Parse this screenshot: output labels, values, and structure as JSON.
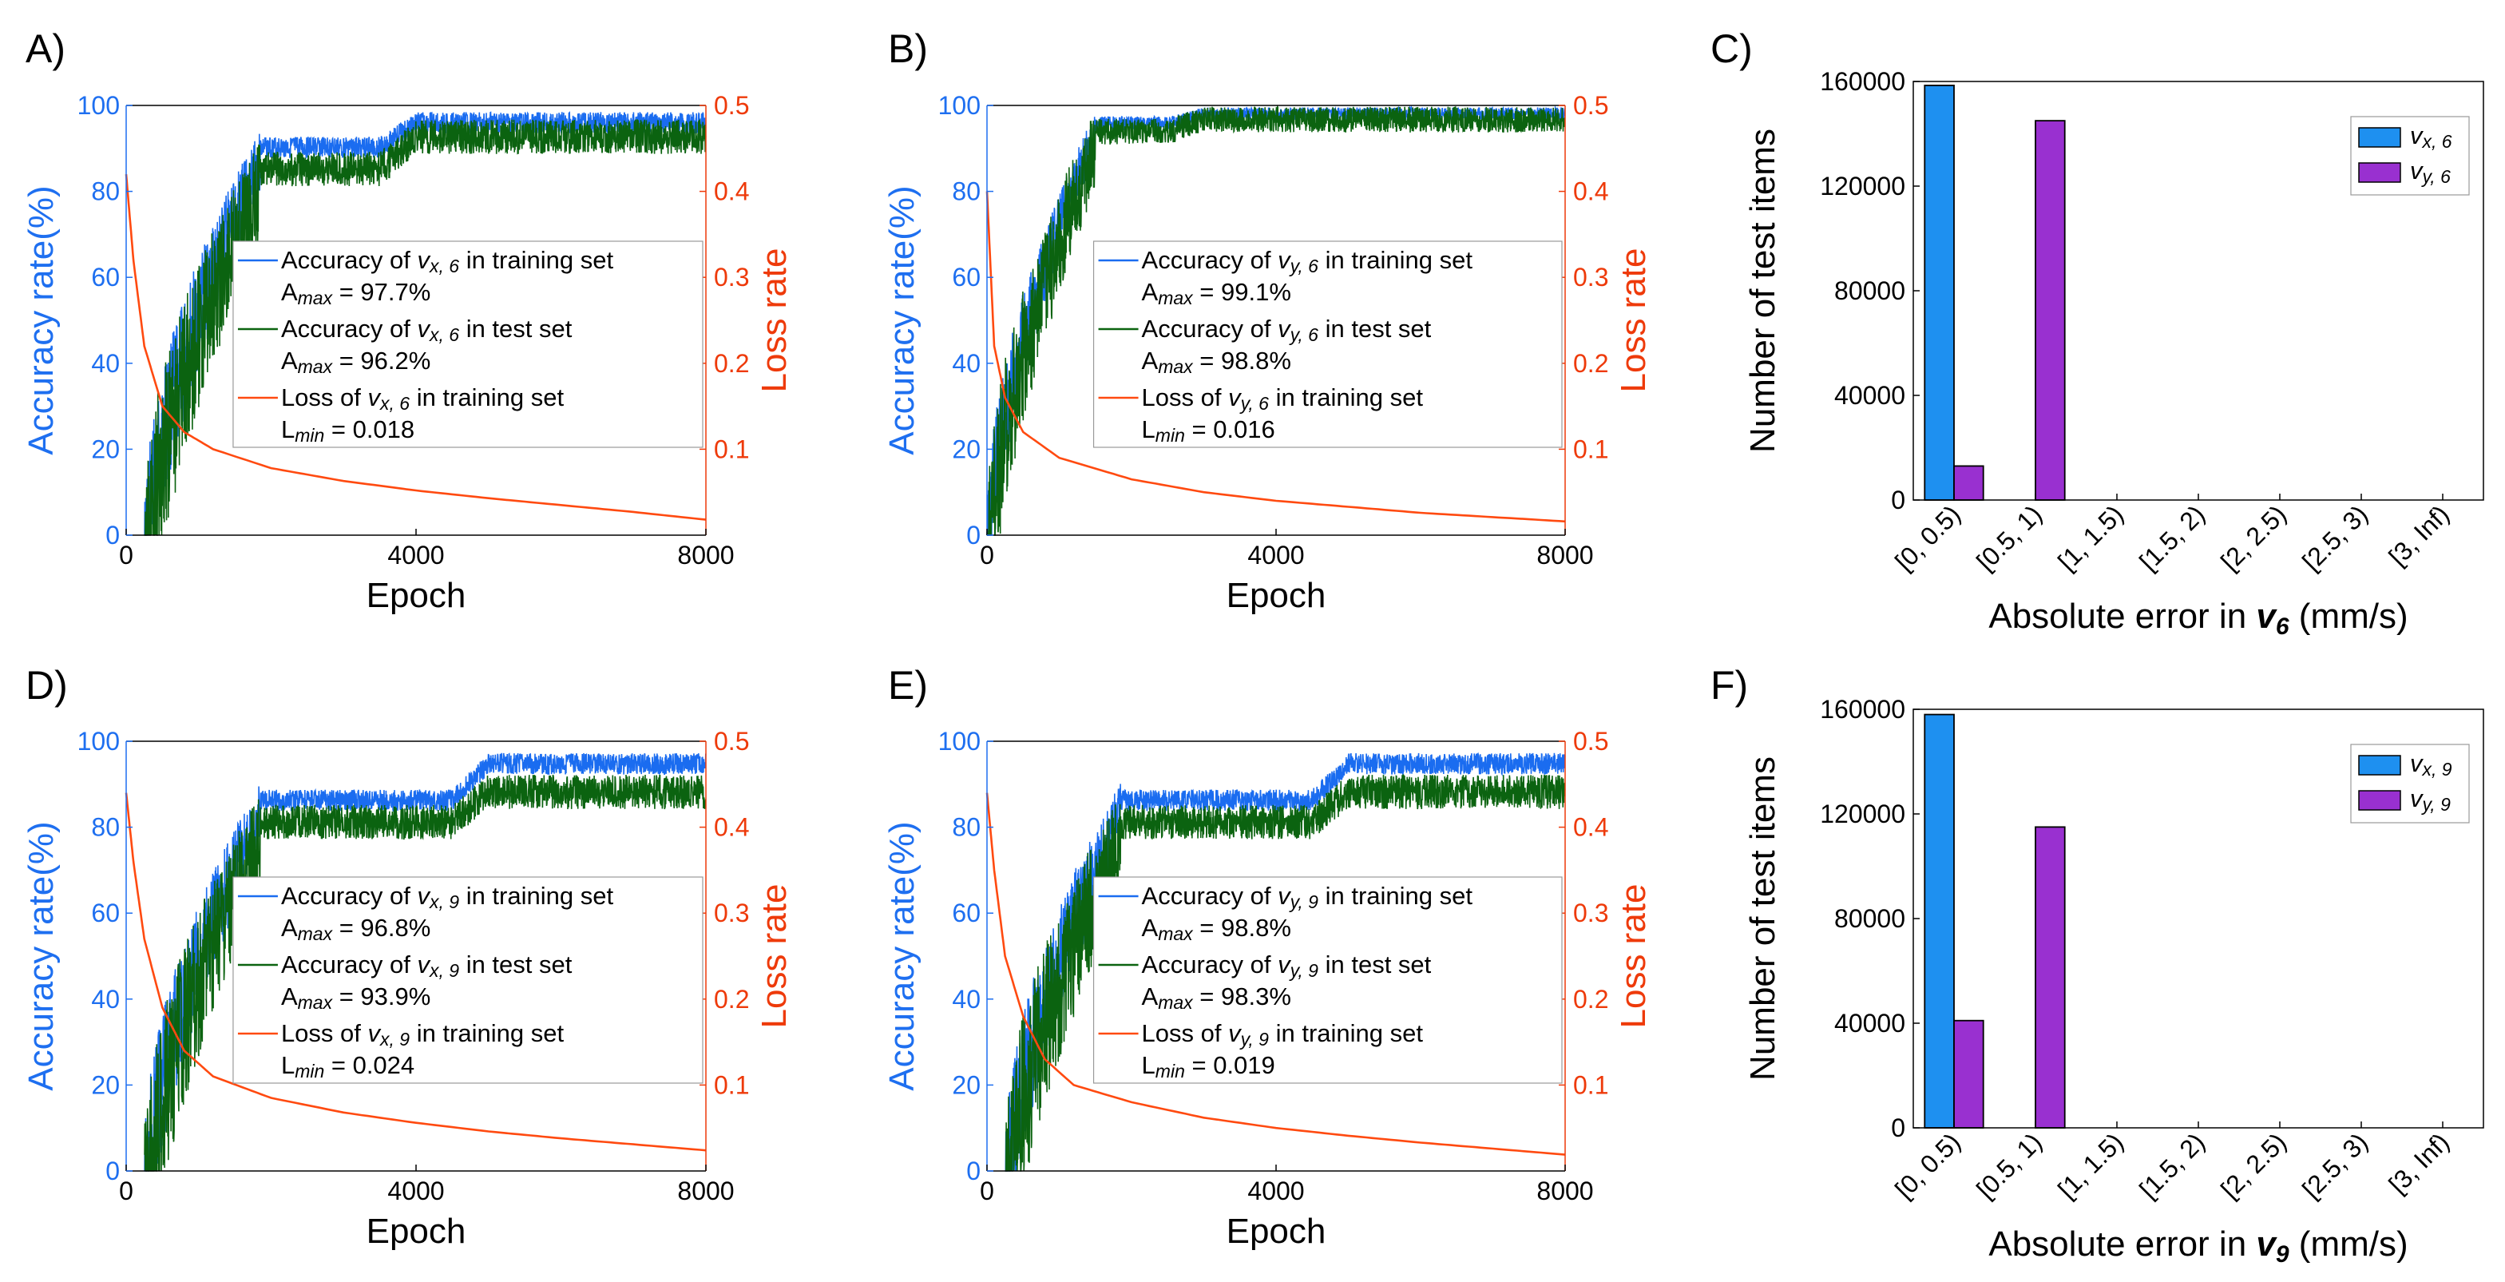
{
  "colors": {
    "train_acc": "#1a6cf0",
    "test_acc": "#0b6310",
    "loss": "#ff4a10",
    "bar_x": "#1e90f0",
    "bar_y": "#9930d0",
    "acc_axis": "#1e6ff0",
    "loss_axis": "#ee3a0a"
  },
  "chart_data": [
    {
      "type": "line",
      "panel": "A)",
      "xlabel": "Epoch",
      "ylabel": "Accuracy rate(%)",
      "y2label": "Loss rate",
      "xlim": [
        0,
        8000
      ],
      "ylim": [
        0,
        100
      ],
      "y2lim": [
        0,
        0.5
      ],
      "xticks": [
        "0",
        "4000",
        "8000"
      ],
      "yticks": [
        "0",
        "20",
        "40",
        "60",
        "80",
        "100"
      ],
      "y2ticks": [
        "0.1",
        "0.2",
        "0.3",
        "0.4",
        "0.5"
      ],
      "series": [
        {
          "name": "Accuracy of v_x,6 in training set",
          "role": "train",
          "start": 250,
          "rise": 1600,
          "mid": 92,
          "t2": 3500,
          "final": 97.7,
          "noise": 2.5
        },
        {
          "name": "Accuracy of v_x,6 in test set",
          "role": "test",
          "start": 250,
          "rise": 1600,
          "mid": 88,
          "t2": 3500,
          "final": 95.5,
          "noise": 4
        },
        {
          "name": "Loss of v_x,6 in training set",
          "role": "loss",
          "values": [
            [
              0,
              0.42
            ],
            [
              100,
              0.32
            ],
            [
              250,
              0.22
            ],
            [
              500,
              0.15
            ],
            [
              800,
              0.12
            ],
            [
              1200,
              0.1
            ],
            [
              2000,
              0.078
            ],
            [
              3000,
              0.063
            ],
            [
              4000,
              0.052
            ],
            [
              5000,
              0.043
            ],
            [
              6000,
              0.035
            ],
            [
              7000,
              0.027
            ],
            [
              8000,
              0.018
            ]
          ]
        }
      ],
      "legend": {
        "position": "center-right",
        "entries": [
          {
            "pre": "Accuracy of ",
            "sym": "v",
            "sub": "x, 6",
            "post": " in training set",
            "stat_pre": "A",
            "stat_sub": "max",
            "stat_val": " = 97.7%"
          },
          {
            "pre": "Accuracy of ",
            "sym": "v",
            "sub": "x, 6",
            "post": " in test set",
            "stat_pre": "A",
            "stat_sub": "max",
            "stat_val": " = 96.2%"
          },
          {
            "pre": "Loss of ",
            "sym": "v",
            "sub": "x, 6",
            "post": " in training set",
            "stat_pre": "L",
            "stat_sub": "min",
            "stat_val": " = 0.018"
          }
        ]
      }
    },
    {
      "type": "line",
      "panel": "B)",
      "xlabel": "Epoch",
      "ylabel": "Accuracy rate(%)",
      "y2label": "Loss rate",
      "xlim": [
        0,
        8000
      ],
      "ylim": [
        0,
        100
      ],
      "y2lim": [
        0,
        0.5
      ],
      "xticks": [
        "0",
        "4000",
        "8000"
      ],
      "yticks": [
        "0",
        "20",
        "40",
        "60",
        "80",
        "100"
      ],
      "y2ticks": [
        "0.1",
        "0.2",
        "0.3",
        "0.4",
        "0.5"
      ],
      "series": [
        {
          "name": "Accuracy of v_y,6 in training set",
          "role": "train",
          "start": 0,
          "rise": 1500,
          "mid": 97,
          "t2": 2500,
          "final": 99.1,
          "noise": 1.5
        },
        {
          "name": "Accuracy of v_y,6 in test set",
          "role": "test",
          "start": 0,
          "rise": 1500,
          "mid": 96,
          "t2": 2500,
          "final": 98.8,
          "noise": 3
        },
        {
          "name": "Loss of v_y,6 in training set",
          "role": "loss",
          "values": [
            [
              0,
              0.4
            ],
            [
              100,
              0.22
            ],
            [
              250,
              0.16
            ],
            [
              500,
              0.12
            ],
            [
              1000,
              0.09
            ],
            [
              2000,
              0.065
            ],
            [
              3000,
              0.05
            ],
            [
              4000,
              0.04
            ],
            [
              5000,
              0.033
            ],
            [
              6000,
              0.026
            ],
            [
              7000,
              0.021
            ],
            [
              8000,
              0.016
            ]
          ]
        }
      ],
      "legend": {
        "position": "center-right",
        "entries": [
          {
            "pre": "Accuracy of ",
            "sym": "v",
            "sub": "y, 6",
            "post": " in training set",
            "stat_pre": "A",
            "stat_sub": "max",
            "stat_val": " = 99.1%"
          },
          {
            "pre": "Accuracy of ",
            "sym": "v",
            "sub": "y, 6",
            "post": " in test set",
            "stat_pre": "A",
            "stat_sub": "max",
            "stat_val": " = 98.8%"
          },
          {
            "pre": "Loss of ",
            "sym": "v",
            "sub": "y, 6",
            "post": " in training set",
            "stat_pre": "L",
            "stat_sub": "min",
            "stat_val": " = 0.016"
          }
        ]
      }
    },
    {
      "type": "bar",
      "panel": "C)",
      "xlabel_pre": "Absolute error in ",
      "xlabel_sym": "v",
      "xlabel_sub": "6",
      "xlabel_post": " (mm/s)",
      "ylabel": "Number of test items",
      "ylim": [
        0,
        160000
      ],
      "yticks": [
        "0",
        "40000",
        "80000",
        "120000",
        "160000"
      ],
      "categories": [
        "[0, 0.5)",
        "[0.5, 1)",
        "[1, 1.5)",
        "[1.5, 2)",
        "[2, 2.5)",
        "[2.5, 3)",
        "[3, Inf)"
      ],
      "series": [
        {
          "name": "v_x,6",
          "sym": "v",
          "sub": "x, 6",
          "values": [
            158500,
            0,
            0,
            0,
            0,
            0,
            0
          ]
        },
        {
          "name": "v_y,6",
          "sym": "v",
          "sub": "y, 6",
          "values": [
            13000,
            145000,
            0,
            0,
            0,
            0,
            0
          ]
        }
      ],
      "legend": "top-right"
    },
    {
      "type": "line",
      "panel": "D)",
      "xlabel": "Epoch",
      "ylabel": "Accuracy rate(%)",
      "y2label": "Loss rate",
      "xlim": [
        0,
        8000
      ],
      "ylim": [
        0,
        100
      ],
      "y2lim": [
        0,
        0.5
      ],
      "xticks": [
        "0",
        "4000",
        "8000"
      ],
      "yticks": [
        "0",
        "20",
        "40",
        "60",
        "80",
        "100"
      ],
      "y2ticks": [
        "0.1",
        "0.2",
        "0.3",
        "0.4",
        "0.5"
      ],
      "series": [
        {
          "name": "Accuracy of v_x,9 in training set",
          "role": "train",
          "start": 250,
          "rise": 1600,
          "mid": 88,
          "t2": 4500,
          "final": 96.5,
          "noise": 2.5
        },
        {
          "name": "Accuracy of v_x,9 in test set",
          "role": "test",
          "start": 250,
          "rise": 1600,
          "mid": 84,
          "t2": 4500,
          "final": 91,
          "noise": 4
        },
        {
          "name": "Loss of v_x,9 in training set",
          "role": "loss",
          "values": [
            [
              0,
              0.44
            ],
            [
              100,
              0.36
            ],
            [
              250,
              0.27
            ],
            [
              500,
              0.19
            ],
            [
              800,
              0.14
            ],
            [
              1200,
              0.11
            ],
            [
              2000,
              0.085
            ],
            [
              3000,
              0.068
            ],
            [
              4000,
              0.056
            ],
            [
              5000,
              0.046
            ],
            [
              6000,
              0.038
            ],
            [
              7000,
              0.031
            ],
            [
              8000,
              0.024
            ]
          ]
        }
      ],
      "legend": {
        "position": "center-right",
        "entries": [
          {
            "pre": "Accuracy of ",
            "sym": "v",
            "sub": "x, 9",
            "post": " in training set",
            "stat_pre": "A",
            "stat_sub": "max",
            "stat_val": " = 96.8%"
          },
          {
            "pre": "Accuracy of ",
            "sym": "v",
            "sub": "x, 9",
            "post": " in test set",
            "stat_pre": "A",
            "stat_sub": "max",
            "stat_val": " = 93.9%"
          },
          {
            "pre": "Loss of ",
            "sym": "v",
            "sub": "x, 9",
            "post": " in training set",
            "stat_pre": "L",
            "stat_sub": "min",
            "stat_val": " = 0.024"
          }
        ]
      }
    },
    {
      "type": "line",
      "panel": "E)",
      "xlabel": "Epoch",
      "ylabel": "Accuracy rate(%)",
      "y2label": "Loss rate",
      "xlim": [
        0,
        8000
      ],
      "ylim": [
        0,
        100
      ],
      "y2lim": [
        0,
        0.5
      ],
      "xticks": [
        "0",
        "4000",
        "8000"
      ],
      "yticks": [
        "0",
        "20",
        "40",
        "60",
        "80",
        "100"
      ],
      "y2ticks": [
        "0.1",
        "0.2",
        "0.3",
        "0.4",
        "0.5"
      ],
      "series": [
        {
          "name": "Accuracy of v_y,9 in training set",
          "role": "train",
          "start": 250,
          "rise": 1600,
          "mid": 88,
          "t2": 4500,
          "final": 96.5,
          "noise": 2.5
        },
        {
          "name": "Accuracy of v_y,9 in test set",
          "role": "test",
          "start": 250,
          "rise": 1600,
          "mid": 84,
          "t2": 4500,
          "final": 91,
          "noise": 4
        },
        {
          "name": "Loss of v_y,9 in training set",
          "role": "loss",
          "values": [
            [
              0,
              0.44
            ],
            [
              100,
              0.35
            ],
            [
              250,
              0.25
            ],
            [
              500,
              0.18
            ],
            [
              800,
              0.13
            ],
            [
              1200,
              0.1
            ],
            [
              2000,
              0.08
            ],
            [
              3000,
              0.062
            ],
            [
              4000,
              0.05
            ],
            [
              5000,
              0.041
            ],
            [
              6000,
              0.033
            ],
            [
              7000,
              0.026
            ],
            [
              8000,
              0.019
            ]
          ]
        }
      ],
      "legend": {
        "position": "center-right",
        "entries": [
          {
            "pre": "Accuracy of ",
            "sym": "v",
            "sub": "y, 9",
            "post": " in training set",
            "stat_pre": "A",
            "stat_sub": "max",
            "stat_val": " = 98.8%"
          },
          {
            "pre": "Accuracy of ",
            "sym": "v",
            "sub": "y, 9",
            "post": " in test set",
            "stat_pre": "A",
            "stat_sub": "max",
            "stat_val": " = 98.3%"
          },
          {
            "pre": "Loss of ",
            "sym": "v",
            "sub": "y, 9",
            "post": " in training set",
            "stat_pre": "L",
            "stat_sub": "min",
            "stat_val": " = 0.019"
          }
        ]
      }
    },
    {
      "type": "bar",
      "panel": "F)",
      "xlabel_pre": "Absolute error in ",
      "xlabel_sym": "v",
      "xlabel_sub": "9",
      "xlabel_post": " (mm/s)",
      "ylabel": "Number of test items",
      "ylim": [
        0,
        160000
      ],
      "yticks": [
        "0",
        "40000",
        "80000",
        "120000",
        "160000"
      ],
      "categories": [
        "[0, 0.5)",
        "[0.5, 1)",
        "[1, 1.5)",
        "[1.5, 2)",
        "[2, 2.5)",
        "[2.5, 3)",
        "[3, Inf)"
      ],
      "series": [
        {
          "name": "v_x,9",
          "sym": "v",
          "sub": "x, 9",
          "values": [
            158000,
            0,
            0,
            0,
            0,
            0,
            0
          ]
        },
        {
          "name": "v_y,9",
          "sym": "v",
          "sub": "y, 9",
          "values": [
            41000,
            115000,
            0,
            0,
            0,
            0,
            0
          ]
        }
      ],
      "legend": "top-right"
    }
  ]
}
